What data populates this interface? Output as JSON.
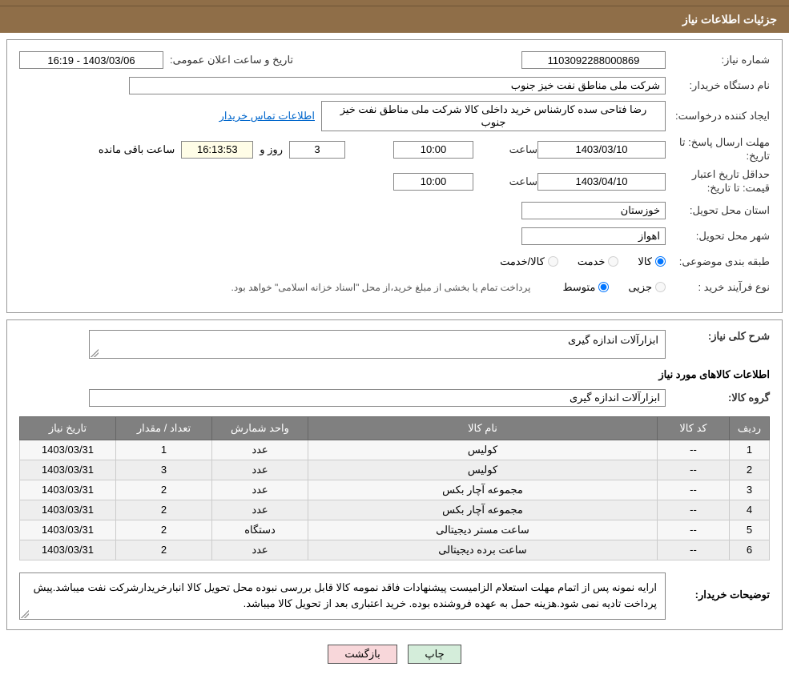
{
  "header": {
    "title": "جزئیات اطلاعات نیاز"
  },
  "fields": {
    "need_number_label": "شماره نیاز:",
    "need_number": "1103092288000869",
    "announce_label": "تاریخ و ساعت اعلان عمومی:",
    "announce_value": "1403/03/06 - 16:19",
    "buyer_org_label": "نام دستگاه خریدار:",
    "buyer_org": "شرکت ملی مناطق نفت خیز جنوب",
    "requester_label": "ایجاد کننده درخواست:",
    "requester": "رضا فتاحی سده  کارشناس خرید داخلی کالا  شرکت ملی مناطق نفت خیز جنوب",
    "contact_link": "اطلاعات تماس خریدار",
    "response_deadline_label": "مهلت ارسال پاسخ: تا تاریخ:",
    "response_date": "1403/03/10",
    "time_label": "ساعت",
    "response_time": "10:00",
    "days_label": "روز و",
    "days_remaining": "3",
    "countdown": "16:13:53",
    "remaining_label": "ساعت باقی مانده",
    "price_validity_label": "حداقل تاریخ اعتبار قیمت: تا تاریخ:",
    "price_validity_date": "1403/04/10",
    "price_validity_time": "10:00",
    "province_label": "استان محل تحویل:",
    "province": "خوزستان",
    "city_label": "شهر محل تحویل:",
    "city": "اهواز",
    "category_label": "طبقه بندی موضوعی:",
    "cat_goods": "کالا",
    "cat_service": "خدمت",
    "cat_goods_service": "کالا/خدمت",
    "process_label": "نوع فرآیند خرید :",
    "proc_minor": "جزیی",
    "proc_medium": "متوسط",
    "process_note": "پرداخت تمام یا بخشی از مبلغ خرید،از محل \"اسناد خزانه اسلامی\" خواهد بود."
  },
  "section2": {
    "general_desc_label": "شرح کلی نیاز:",
    "general_desc": "ابزارآلات اندازه گیری",
    "items_header": "اطلاعات کالاهای مورد نیاز",
    "group_label": "گروه کالا:",
    "group_value": "ابزارآلات اندازه گیری",
    "buyer_notes_label": "توضیحات خریدار:",
    "buyer_notes": "ارایه نمونه پس از اتمام مهلت استعلام الزامیست پیشنهادات فاقد نمومه کالا قابل بررسی نبوده محل تحویل کالا انبارخریدارشرکت نفت میباشد.پیش پرداخت تادیه نمی شود.هزینه حمل به عهده فروشنده بوده. خرید اعتباری بعد از تحویل کالا میباشد."
  },
  "table": {
    "headers": [
      "ردیف",
      "کد کالا",
      "نام کالا",
      "واحد شمارش",
      "تعداد / مقدار",
      "تاریخ نیاز"
    ],
    "rows": [
      [
        "1",
        "--",
        "کولیس",
        "عدد",
        "1",
        "1403/03/31"
      ],
      [
        "2",
        "--",
        "کولیس",
        "عدد",
        "3",
        "1403/03/31"
      ],
      [
        "3",
        "--",
        "مجموعه آچار بکس",
        "عدد",
        "2",
        "1403/03/31"
      ],
      [
        "4",
        "--",
        "مجموعه آچار بکس",
        "عدد",
        "2",
        "1403/03/31"
      ],
      [
        "5",
        "--",
        "ساعت مستر دیجیتالی",
        "دستگاه",
        "2",
        "1403/03/31"
      ],
      [
        "6",
        "--",
        "ساعت برده دیجیتالی",
        "عدد",
        "2",
        "1403/03/31"
      ]
    ]
  },
  "buttons": {
    "print": "چاپ",
    "back": "بازگشت"
  },
  "colors": {
    "header_bg": "#8f6e48",
    "th_bg": "#808080",
    "btn_print": "#d4edda",
    "btn_back": "#f8d7da"
  }
}
